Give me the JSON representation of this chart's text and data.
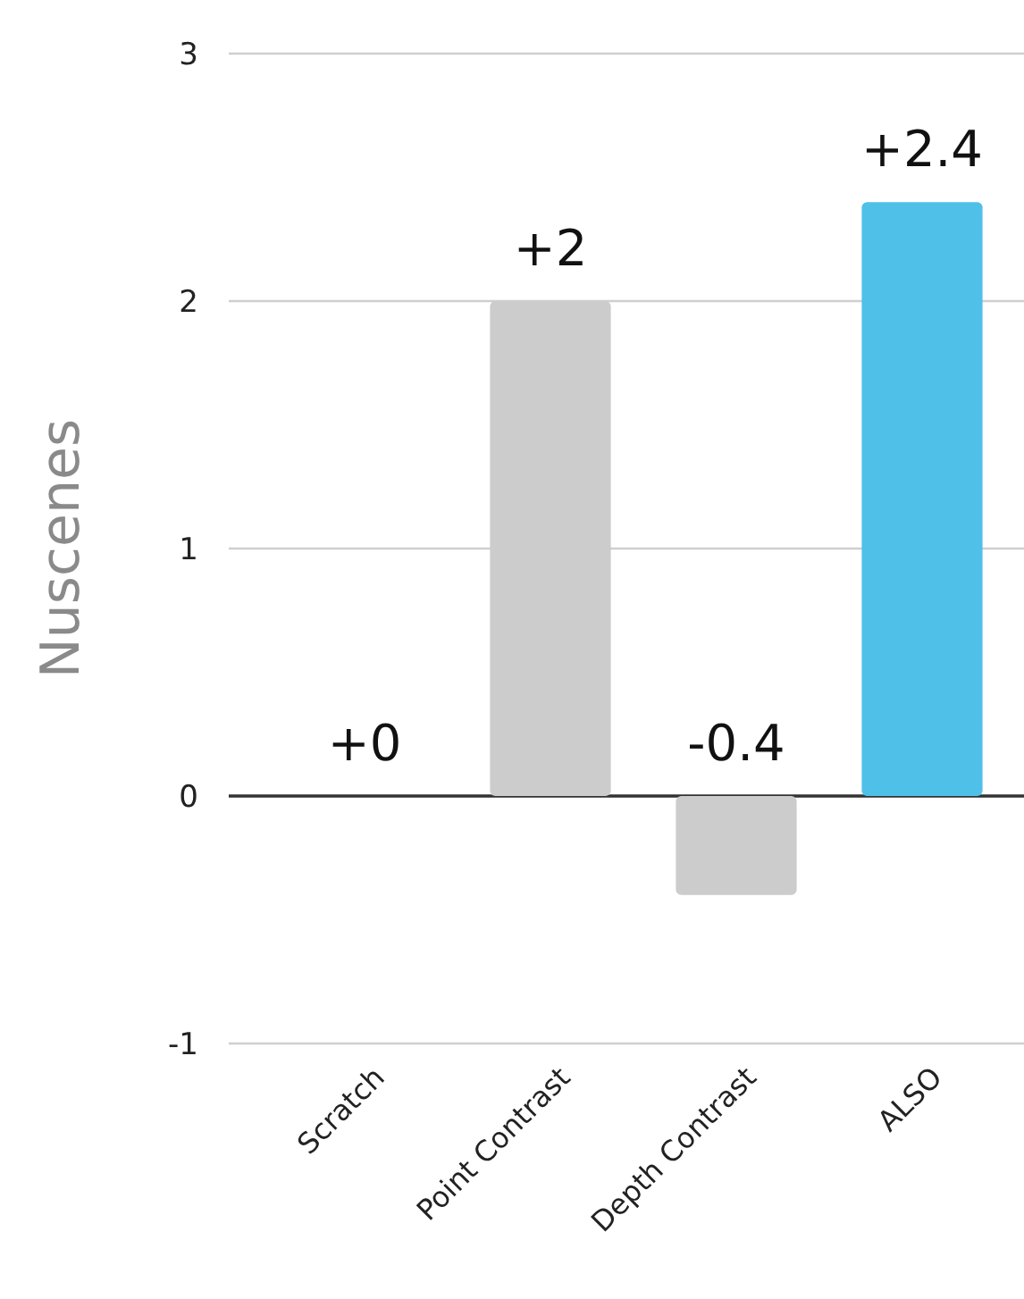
{
  "chart_data": {
    "type": "bar",
    "ylabel": "Nuscenes",
    "categories": [
      "Scratch",
      "Point Contrast",
      "Depth Contrast",
      "ALSO"
    ],
    "values": [
      0,
      2,
      -0.4,
      2.4
    ],
    "colors": [
      "#cccccc",
      "#cccccc",
      "#cccccc",
      "#4fc0e8"
    ],
    "value_labels": [
      "+0",
      "+2",
      "-0.4",
      "+2.4"
    ],
    "ylim": [
      -1,
      3
    ],
    "yticks": [
      -1,
      0,
      1,
      2,
      3
    ],
    "grid": "y"
  }
}
